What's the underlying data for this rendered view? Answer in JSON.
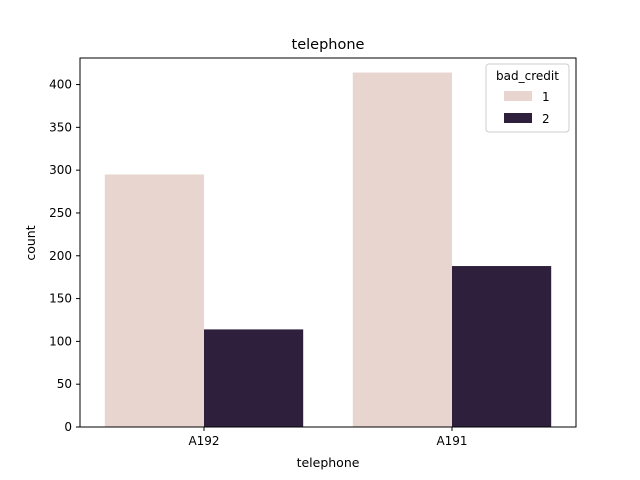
{
  "chart_data": {
    "type": "bar",
    "title": "telephone",
    "xlabel": "telephone",
    "ylabel": "count",
    "categories": [
      "A192",
      "A191"
    ],
    "series": [
      {
        "name": "1",
        "values": [
          295,
          414
        ],
        "color": "#e8d5d0"
      },
      {
        "name": "2",
        "values": [
          114,
          188
        ],
        "color": "#2e1f3c"
      }
    ],
    "ylim": [
      0,
      431
    ],
    "yticks": [
      0,
      50,
      100,
      150,
      200,
      250,
      300,
      350,
      400
    ],
    "legend": {
      "title": "bad_credit",
      "placement": "top-right"
    },
    "grid": false
  }
}
